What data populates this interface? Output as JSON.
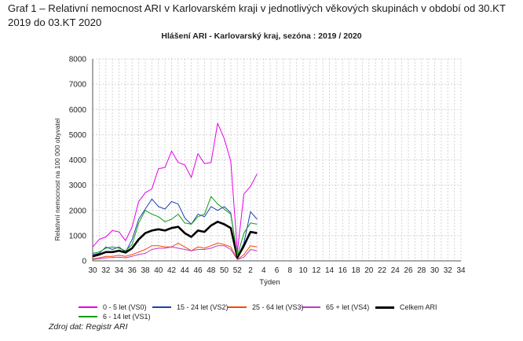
{
  "caption": "Graf 1 – Relativní nemocnost ARI v Karlovarském kraji v jednotlivých věkových skupinách v období od 30.KT 2019 do 03.KT 2020",
  "source": "Zdroj dat: Registr ARI",
  "chart_data": {
    "type": "line",
    "title": "Hlášení ARI   -   Karlovarský kraj, sezóna : 2019 / 2020",
    "xlabel": "Týden",
    "ylabel": "Relativní nemocnost na 100 000 obyvatel",
    "ylim": [
      0,
      8000
    ],
    "yticks": [
      0,
      1000,
      2000,
      3000,
      4000,
      5000,
      6000,
      7000,
      8000
    ],
    "ytick_labels": [
      "0",
      "1000",
      "2000",
      "3000",
      "4000",
      "5000",
      "6000",
      "7000",
      "8000"
    ],
    "xtick_labels": [
      "30",
      "32",
      "34",
      "36",
      "38",
      "40",
      "42",
      "44",
      "46",
      "48",
      "50",
      "52",
      "2",
      "4",
      "6",
      "8",
      "10",
      "12",
      "14",
      "16",
      "18",
      "20",
      "22",
      "24",
      "26",
      "28",
      "30",
      "32",
      "34"
    ],
    "grid": true,
    "legend_position": "bottom",
    "x": [
      "30",
      "31",
      "32",
      "33",
      "34",
      "35",
      "36",
      "37",
      "38",
      "39",
      "40",
      "41",
      "42",
      "43",
      "44",
      "45",
      "46",
      "47",
      "48",
      "49",
      "50",
      "51",
      "52",
      "1",
      "2",
      "3"
    ],
    "series": [
      {
        "name": "0 - 5 let (VS0)",
        "color": "#e600e6",
        "width": 1,
        "values": [
          550,
          850,
          950,
          1200,
          1150,
          800,
          1350,
          2350,
          2700,
          2850,
          3650,
          3700,
          4350,
          3900,
          3800,
          3300,
          4250,
          3850,
          3900,
          5450,
          4850,
          3950,
          350,
          2650,
          2950,
          3450
        ]
      },
      {
        "name": "15 - 24 let (VS2)",
        "color": "#1f3fb5",
        "width": 1,
        "values": [
          250,
          300,
          550,
          450,
          550,
          350,
          850,
          1650,
          2050,
          2450,
          2150,
          2050,
          2350,
          2250,
          1700,
          1450,
          1850,
          1750,
          2150,
          2000,
          2150,
          1900,
          150,
          700,
          1950,
          1650
        ]
      },
      {
        "name": "25 - 64 let (VS3)",
        "color": "#ff4500",
        "width": 1,
        "values": [
          80,
          120,
          180,
          180,
          220,
          180,
          250,
          350,
          450,
          600,
          600,
          550,
          550,
          700,
          550,
          400,
          550,
          500,
          600,
          700,
          650,
          550,
          60,
          250,
          600,
          550
        ]
      },
      {
        "name": "65 + let (VS4)",
        "color": "#b93cc9",
        "width": 1,
        "values": [
          50,
          80,
          120,
          130,
          150,
          120,
          180,
          250,
          300,
          450,
          500,
          500,
          550,
          500,
          450,
          400,
          450,
          450,
          500,
          600,
          600,
          450,
          50,
          150,
          450,
          400
        ]
      },
      {
        "name": "Celkem ARI",
        "color": "#000000",
        "width": 2.6,
        "values": [
          180,
          250,
          350,
          350,
          400,
          330,
          500,
          850,
          1100,
          1200,
          1250,
          1200,
          1300,
          1350,
          1100,
          950,
          1200,
          1150,
          1400,
          1550,
          1450,
          1300,
          130,
          600,
          1150,
          1100
        ]
      },
      {
        "name": "6 - 14 let (VS1)",
        "color": "#159b15",
        "width": 1,
        "values": [
          300,
          350,
          500,
          550,
          500,
          400,
          650,
          1500,
          2000,
          1850,
          1750,
          1550,
          1650,
          1850,
          1500,
          1450,
          1750,
          1850,
          2550,
          2250,
          2050,
          1850,
          200,
          1100,
          1500,
          1450
        ]
      }
    ],
    "legend": [
      {
        "label": "0 - 5 let (VS0)",
        "color": "#e600e6"
      },
      {
        "label": "15 - 24 let (VS2)",
        "color": "#1f3fb5"
      },
      {
        "label": "25 - 64 let (VS3)",
        "color": "#ff4500"
      },
      {
        "label": "65 + let (VS4)",
        "color": "#b93cc9"
      },
      {
        "label": "Celkem ARI",
        "color": "#000000"
      },
      {
        "label": "6 - 14 let (VS1)",
        "color": "#159b15"
      }
    ]
  }
}
